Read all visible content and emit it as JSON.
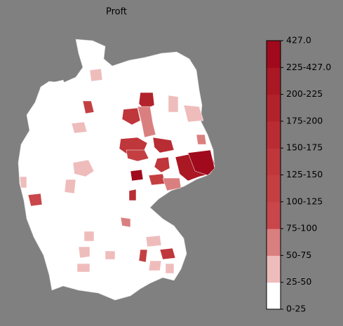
{
  "title": "Proft",
  "legend": {
    "labels": [
      "0-25",
      "25-50",
      "50-75",
      "75-100",
      "100-125",
      "125-150",
      "150-175",
      "175-200",
      "200-225",
      "225-427.0",
      "427.0"
    ],
    "colors": [
      "#ffffff",
      "#efbcbc",
      "#da7f7f",
      "#c9464a",
      "#c43f42",
      "#bf363b",
      "#b92c33",
      "#b2222b",
      "#aa1824",
      "#a00a1c"
    ]
  }
}
